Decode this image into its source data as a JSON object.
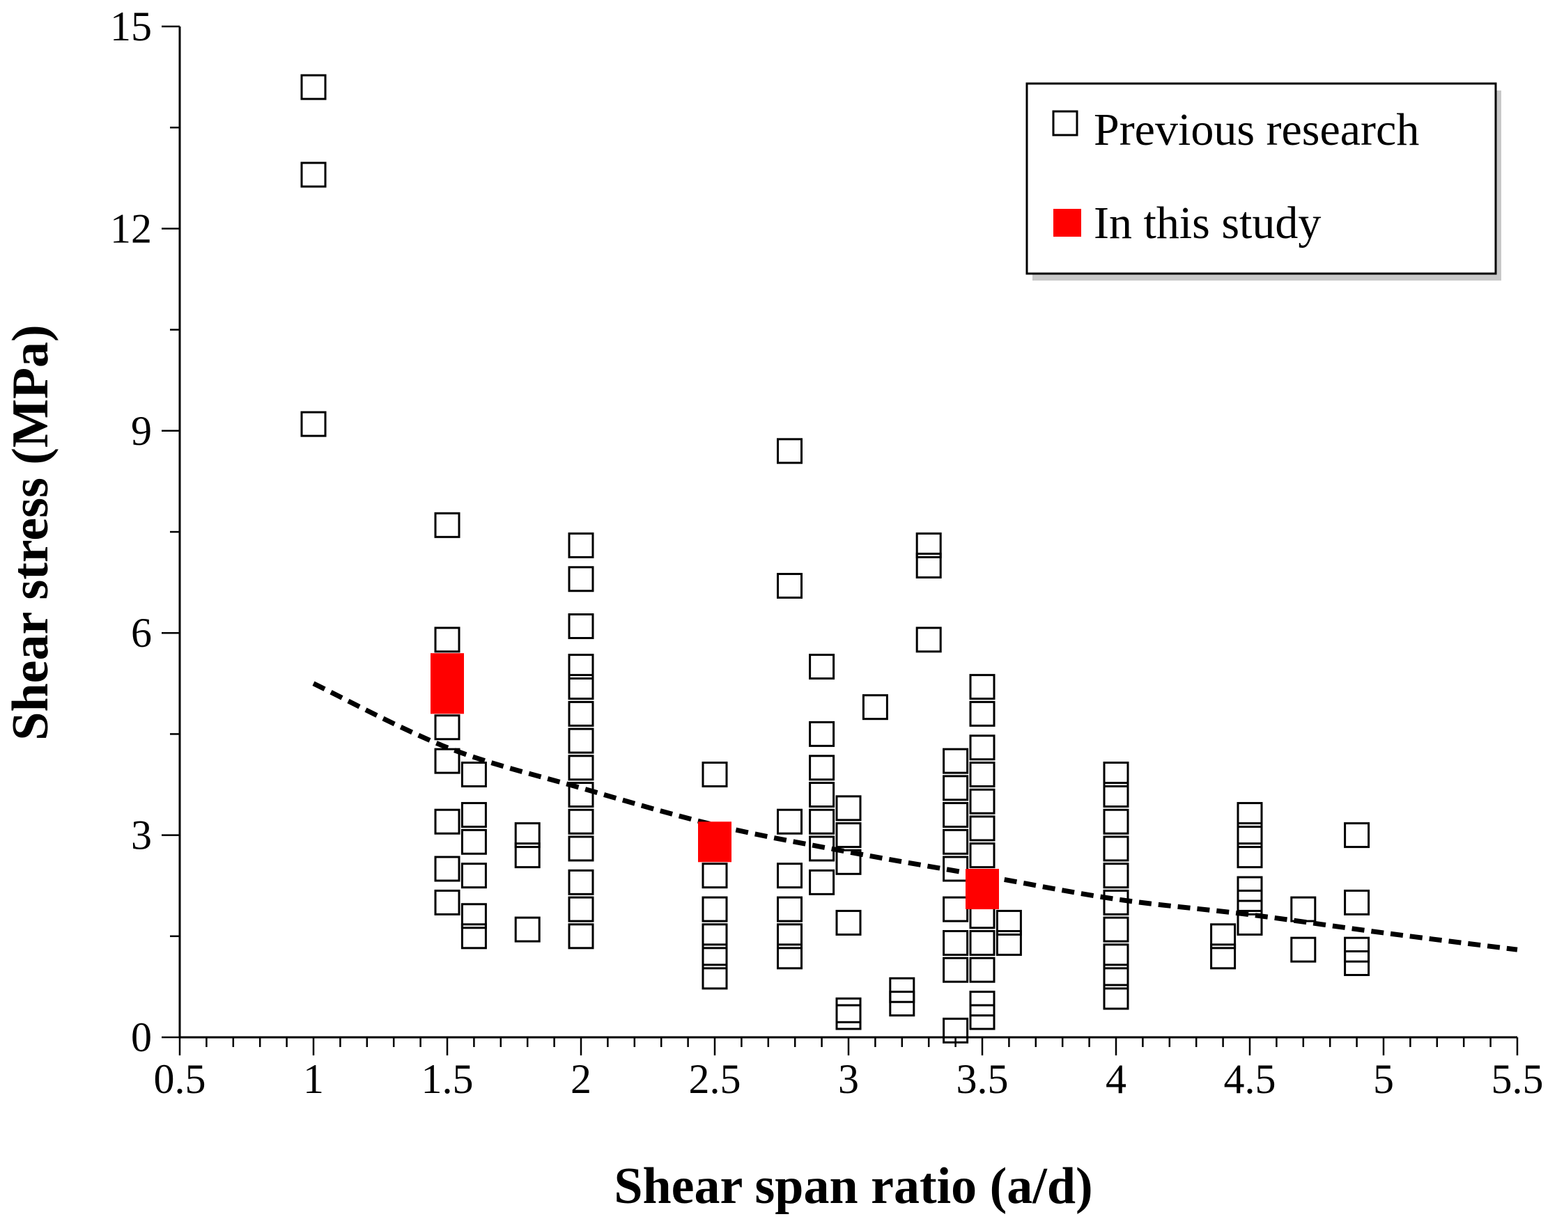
{
  "chart_data": {
    "type": "scatter",
    "title": "",
    "xlabel": "Shear span ratio (a/d)",
    "ylabel": "Shear stress (MPa)",
    "xlim": [
      0.5,
      5.5
    ],
    "ylim": [
      0,
      15
    ],
    "xticks": [
      0.5,
      1,
      1.5,
      2,
      2.5,
      3,
      3.5,
      4,
      4.5,
      5,
      5.5
    ],
    "xtick_labels": [
      "0.5",
      "1",
      "1.5",
      "2",
      "2.5",
      "3",
      "3.5",
      "4",
      "4.5",
      "5",
      "5.5"
    ],
    "yticks": [
      0,
      3,
      6,
      9,
      12,
      15
    ],
    "ytick_labels": [
      "0",
      "3",
      "6",
      "9",
      "12",
      "15"
    ],
    "legend_position": "top-right",
    "grid": false,
    "series": [
      {
        "name": "Previous research",
        "marker": "open-square",
        "color": "#000000",
        "points": [
          [
            1.0,
            14.1
          ],
          [
            1.0,
            12.8
          ],
          [
            1.0,
            9.1
          ],
          [
            1.5,
            7.6
          ],
          [
            1.5,
            5.9
          ],
          [
            1.5,
            4.6
          ],
          [
            1.5,
            4.1
          ],
          [
            1.5,
            3.2
          ],
          [
            1.5,
            2.5
          ],
          [
            1.5,
            2.0
          ],
          [
            1.6,
            3.9
          ],
          [
            1.6,
            3.3
          ],
          [
            1.6,
            2.9
          ],
          [
            1.6,
            2.4
          ],
          [
            1.6,
            1.8
          ],
          [
            1.6,
            1.5
          ],
          [
            1.8,
            3.0
          ],
          [
            1.8,
            2.7
          ],
          [
            1.8,
            1.6
          ],
          [
            2.0,
            7.3
          ],
          [
            2.0,
            6.8
          ],
          [
            2.0,
            6.1
          ],
          [
            2.0,
            5.5
          ],
          [
            2.0,
            5.2
          ],
          [
            2.0,
            4.8
          ],
          [
            2.0,
            4.4
          ],
          [
            2.0,
            4.0
          ],
          [
            2.0,
            3.6
          ],
          [
            2.0,
            3.2
          ],
          [
            2.0,
            2.8
          ],
          [
            2.0,
            2.3
          ],
          [
            2.0,
            1.9
          ],
          [
            2.0,
            1.5
          ],
          [
            2.5,
            3.9
          ],
          [
            2.5,
            2.4
          ],
          [
            2.5,
            1.9
          ],
          [
            2.5,
            1.5
          ],
          [
            2.5,
            1.2
          ],
          [
            2.5,
            0.9
          ],
          [
            2.78,
            8.7
          ],
          [
            2.78,
            6.7
          ],
          [
            2.78,
            3.2
          ],
          [
            2.78,
            2.4
          ],
          [
            2.78,
            1.9
          ],
          [
            2.78,
            1.5
          ],
          [
            2.78,
            1.2
          ],
          [
            2.9,
            5.5
          ],
          [
            2.9,
            4.5
          ],
          [
            2.9,
            4.0
          ],
          [
            2.9,
            3.6
          ],
          [
            2.9,
            3.2
          ],
          [
            2.9,
            2.8
          ],
          [
            2.9,
            2.3
          ],
          [
            3.0,
            3.4
          ],
          [
            3.0,
            3.0
          ],
          [
            3.0,
            2.6
          ],
          [
            3.0,
            1.7
          ],
          [
            3.0,
            0.4
          ],
          [
            3.0,
            0.3
          ],
          [
            3.1,
            4.9
          ],
          [
            3.2,
            0.7
          ],
          [
            3.2,
            0.5
          ],
          [
            3.3,
            7.3
          ],
          [
            3.3,
            7.0
          ],
          [
            3.3,
            5.9
          ],
          [
            3.4,
            4.1
          ],
          [
            3.4,
            3.7
          ],
          [
            3.4,
            3.3
          ],
          [
            3.4,
            2.9
          ],
          [
            3.4,
            2.5
          ],
          [
            3.4,
            1.9
          ],
          [
            3.4,
            1.4
          ],
          [
            3.4,
            1.0
          ],
          [
            3.4,
            0.1
          ],
          [
            3.5,
            5.2
          ],
          [
            3.5,
            4.8
          ],
          [
            3.5,
            4.3
          ],
          [
            3.5,
            3.9
          ],
          [
            3.5,
            3.5
          ],
          [
            3.5,
            3.1
          ],
          [
            3.5,
            2.7
          ],
          [
            3.5,
            1.8
          ],
          [
            3.5,
            1.4
          ],
          [
            3.5,
            1.0
          ],
          [
            3.5,
            0.5
          ],
          [
            3.5,
            0.3
          ],
          [
            3.6,
            1.7
          ],
          [
            3.6,
            1.4
          ],
          [
            4.0,
            3.9
          ],
          [
            4.0,
            3.6
          ],
          [
            4.0,
            3.2
          ],
          [
            4.0,
            2.8
          ],
          [
            4.0,
            2.4
          ],
          [
            4.0,
            2.0
          ],
          [
            4.0,
            1.6
          ],
          [
            4.0,
            1.2
          ],
          [
            4.0,
            0.9
          ],
          [
            4.0,
            0.6
          ],
          [
            4.4,
            1.5
          ],
          [
            4.4,
            1.2
          ],
          [
            4.5,
            3.3
          ],
          [
            4.5,
            3.0
          ],
          [
            4.5,
            2.7
          ],
          [
            4.5,
            2.2
          ],
          [
            4.5,
            2.0
          ],
          [
            4.5,
            1.7
          ],
          [
            4.7,
            1.9
          ],
          [
            4.7,
            1.3
          ],
          [
            4.9,
            3.0
          ],
          [
            4.9,
            2.0
          ],
          [
            4.9,
            1.3
          ],
          [
            4.9,
            1.1
          ]
        ]
      },
      {
        "name": "In this study",
        "marker": "filled-rect",
        "color": "#ff0000",
        "bars": [
          {
            "x": 1.5,
            "y_low": 4.8,
            "y_high": 5.7
          },
          {
            "x": 2.5,
            "y_low": 2.6,
            "y_high": 3.2
          },
          {
            "x": 3.5,
            "y_low": 1.9,
            "y_high": 2.5
          }
        ]
      }
    ],
    "trendline": {
      "name": "trend",
      "style": "dashed",
      "color": "#000000",
      "x": [
        1.0,
        1.5,
        2.0,
        2.5,
        3.0,
        3.5,
        4.0,
        4.5,
        5.0,
        5.5
      ],
      "y": [
        5.25,
        4.3,
        3.7,
        3.15,
        2.75,
        2.4,
        2.05,
        1.82,
        1.55,
        1.3
      ]
    }
  }
}
